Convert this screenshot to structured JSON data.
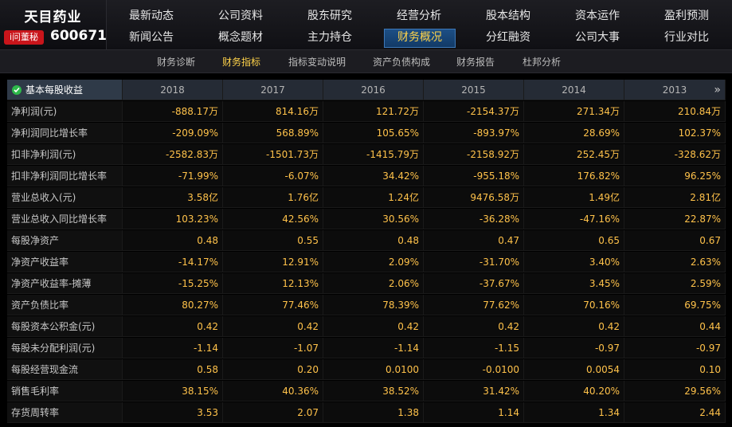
{
  "company": {
    "name": "天目药业",
    "badge": "i问董秘",
    "code": "600671"
  },
  "nav_row1": [
    "最新动态",
    "公司资料",
    "股东研究",
    "经营分析",
    "股本结构",
    "资本运作",
    "盈利预测"
  ],
  "nav_row2": [
    "新闻公告",
    "概念题材",
    "主力持仓",
    "财务概况",
    "分红融资",
    "公司大事",
    "行业对比"
  ],
  "nav_active": "财务概况",
  "subnav": [
    "财务诊断",
    "财务指标",
    "指标变动说明",
    "资产负债构成",
    "财务报告",
    "杜邦分析"
  ],
  "subnav_active": "财务指标",
  "table": {
    "header_label": "基本每股收益",
    "years": [
      "2018",
      "2017",
      "2016",
      "2015",
      "2014",
      "2013"
    ],
    "rows": [
      {
        "label": "净利润(元)",
        "values": [
          "-888.17万",
          "814.16万",
          "121.72万",
          "-2154.37万",
          "271.34万",
          "210.84万"
        ]
      },
      {
        "label": "净利润同比增长率",
        "values": [
          "-209.09%",
          "568.89%",
          "105.65%",
          "-893.97%",
          "28.69%",
          "102.37%"
        ]
      },
      {
        "label": "扣非净利润(元)",
        "values": [
          "-2582.83万",
          "-1501.73万",
          "-1415.79万",
          "-2158.92万",
          "252.45万",
          "-328.62万"
        ]
      },
      {
        "label": "扣非净利润同比增长率",
        "values": [
          "-71.99%",
          "-6.07%",
          "34.42%",
          "-955.18%",
          "176.82%",
          "96.25%"
        ]
      },
      {
        "label": "营业总收入(元)",
        "values": [
          "3.58亿",
          "1.76亿",
          "1.24亿",
          "9476.58万",
          "1.49亿",
          "2.81亿"
        ]
      },
      {
        "label": "营业总收入同比增长率",
        "values": [
          "103.23%",
          "42.56%",
          "30.56%",
          "-36.28%",
          "-47.16%",
          "22.87%"
        ]
      },
      {
        "label": "每股净资产",
        "values": [
          "0.48",
          "0.55",
          "0.48",
          "0.47",
          "0.65",
          "0.67"
        ]
      },
      {
        "label": "净资产收益率",
        "values": [
          "-14.17%",
          "12.91%",
          "2.09%",
          "-31.70%",
          "3.40%",
          "2.63%"
        ]
      },
      {
        "label": "净资产收益率-摊薄",
        "values": [
          "-15.25%",
          "12.13%",
          "2.06%",
          "-37.67%",
          "3.45%",
          "2.59%"
        ]
      },
      {
        "label": "资产负债比率",
        "values": [
          "80.27%",
          "77.46%",
          "78.39%",
          "77.62%",
          "70.16%",
          "69.75%"
        ]
      },
      {
        "label": "每股资本公积金(元)",
        "values": [
          "0.42",
          "0.42",
          "0.42",
          "0.42",
          "0.42",
          "0.44"
        ]
      },
      {
        "label": "每股未分配利润(元)",
        "values": [
          "-1.14",
          "-1.07",
          "-1.14",
          "-1.15",
          "-0.97",
          "-0.97"
        ]
      },
      {
        "label": "每股经营现金流",
        "values": [
          "0.58",
          "0.20",
          "0.0100",
          "-0.0100",
          "0.0054",
          "0.10"
        ]
      },
      {
        "label": "销售毛利率",
        "values": [
          "38.15%",
          "40.36%",
          "38.52%",
          "31.42%",
          "40.20%",
          "29.56%"
        ]
      },
      {
        "label": "存货周转率",
        "values": [
          "3.53",
          "2.07",
          "1.38",
          "1.14",
          "1.34",
          "2.44"
        ]
      }
    ]
  },
  "colors": {
    "value": "#ffc24a",
    "active_tab": "#ffd34a",
    "badge": "#c9151b"
  },
  "icons": {
    "header_check": "check-circle-icon",
    "scroll_more": "double-chevron-right-icon"
  }
}
